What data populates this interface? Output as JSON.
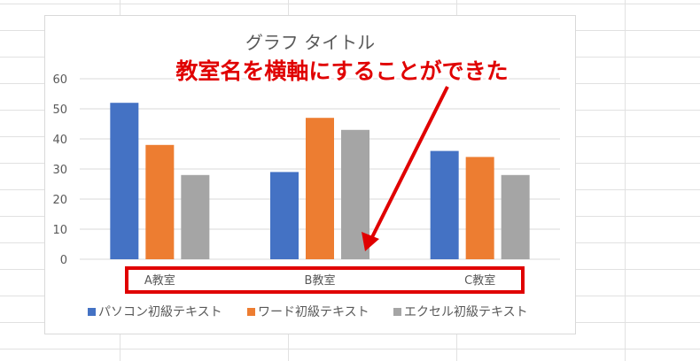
{
  "chart_data": {
    "type": "bar",
    "title": "グラフ タイトル",
    "categories": [
      "A教室",
      "B教室",
      "C教室"
    ],
    "series": [
      {
        "name": "パソコン初級テキスト",
        "values": [
          52,
          29,
          36
        ],
        "color": "#4472c4"
      },
      {
        "name": "ワード初級テキスト",
        "values": [
          38,
          47,
          34
        ],
        "color": "#ed7d31"
      },
      {
        "name": "エクセル初級テキスト",
        "values": [
          28,
          43,
          28
        ],
        "color": "#a5a5a5"
      }
    ],
    "ylim": [
      0,
      60
    ],
    "yticks": [
      "0",
      "10",
      "20",
      "30",
      "40",
      "50",
      "60"
    ],
    "grid": true,
    "legend": "bottom"
  },
  "annotation": {
    "text": "教室名を横軸にすることができた",
    "color": "#e00000"
  }
}
